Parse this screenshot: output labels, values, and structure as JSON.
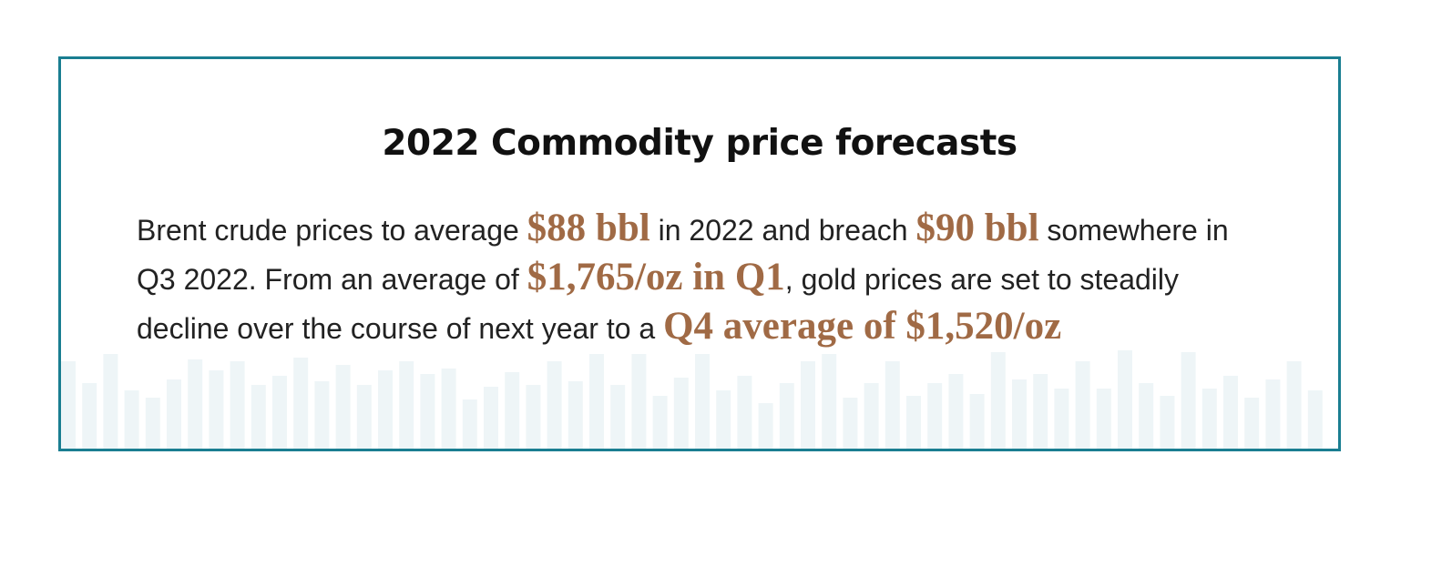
{
  "card": {
    "title": "2022 Commodity price forecasts",
    "paragraph": {
      "t1": "Brent crude prices to average ",
      "h1": "$88 bbl",
      "t2": " in 2022 and breach ",
      "h2": "$90 bbl",
      "t3": " somewhere in Q3 2022. From an average of ",
      "h3": "$1,765/oz in Q1",
      "t4": ", gold prices are set to steadily decline over the course of next year to a ",
      "h4": "Q4 average of $1,520/oz"
    }
  },
  "colors": {
    "border": "#1a7e91",
    "highlight": "#a06a45",
    "bars": "#eef5f7"
  }
}
